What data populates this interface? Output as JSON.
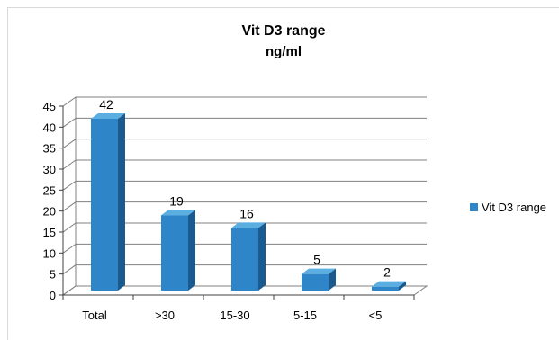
{
  "chart_data": {
    "type": "bar",
    "title": "Vit D3 range",
    "subtitle": "ng/ml",
    "categories": [
      "Total",
      ">30",
      "15-30",
      "5-15",
      "<5"
    ],
    "series": [
      {
        "name": "Vit D3 range",
        "values": [
          42,
          19,
          16,
          5,
          2
        ]
      }
    ],
    "data_labels": [
      "42",
      "19",
      "16",
      "5",
      "2"
    ],
    "ylim": [
      0,
      45
    ],
    "yticks": [
      0,
      5,
      10,
      15,
      20,
      25,
      30,
      35,
      40,
      45
    ],
    "grid": true,
    "legend_position": "right",
    "three_d": true,
    "colors": {
      "bar_front": "#2e86c8",
      "bar_side": "#1b5a8e",
      "bar_top": "#5aaee0",
      "gridline": "#808080",
      "axis": "#404040"
    }
  }
}
